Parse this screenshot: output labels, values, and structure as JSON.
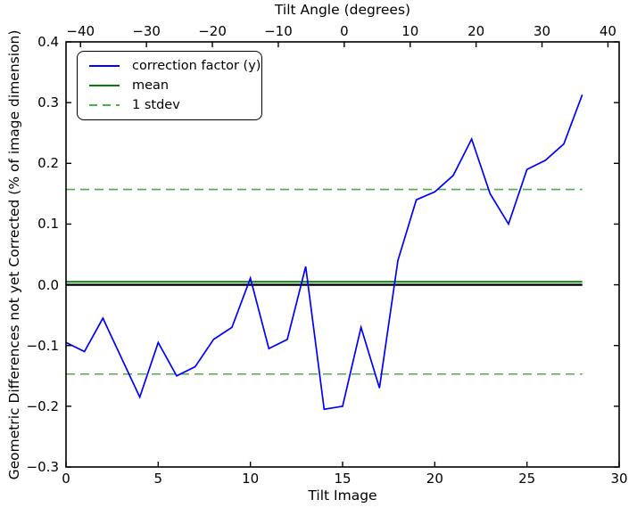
{
  "figure": {
    "top_axis_title": "Tilt Angle (degrees)",
    "bottom_axis_title": "Tilt Image",
    "left_axis_title": "Geometric Differences not yet Corrected (% of image dimension)"
  },
  "legend": {
    "items": [
      {
        "label": "correction factor (y)",
        "color": "#0000ff",
        "style": "solid"
      },
      {
        "label": "mean",
        "color": "#008000",
        "style": "solid"
      },
      {
        "label": "1 stdev",
        "color": "#4dae4d",
        "style": "dashed"
      }
    ]
  },
  "chart_data": {
    "type": "line",
    "title": "Tilt Angle (degrees)",
    "xlabel": "Tilt Image",
    "ylabel": "Geometric Differences not yet Corrected (% of image dimension)",
    "x": [
      0,
      1,
      2,
      3,
      4,
      5,
      6,
      7,
      8,
      9,
      10,
      11,
      12,
      13,
      14,
      15,
      16,
      17,
      18,
      19,
      20,
      21,
      22,
      23,
      24,
      25,
      26,
      27,
      28
    ],
    "series": [
      {
        "name": "correction factor (y)",
        "color": "#0000ff",
        "values": [
          -0.095,
          -0.11,
          -0.055,
          -0.12,
          -0.185,
          -0.095,
          -0.15,
          -0.135,
          -0.09,
          -0.07,
          0.011,
          -0.105,
          -0.09,
          0.03,
          -0.205,
          -0.2,
          -0.07,
          -0.17,
          0.04,
          0.14,
          0.153,
          0.18,
          0.24,
          0.15,
          0.1,
          0.19,
          0.205,
          0.232,
          0.313
        ]
      }
    ],
    "reference_lines": [
      {
        "name": "mean",
        "y": 0.005,
        "color": "#008000",
        "style": "solid",
        "width": 1.8
      },
      {
        "name": "1 stdev upper",
        "y": 0.157,
        "color": "#4dae4d",
        "style": "dashed",
        "width": 1.6
      },
      {
        "name": "1 stdev lower",
        "y": -0.147,
        "color": "#4dae4d",
        "style": "dashed",
        "width": 1.6
      },
      {
        "name": "zero",
        "y": 0.0,
        "color": "#000000",
        "style": "solid",
        "width": 2.3
      }
    ],
    "axes": {
      "bottom": {
        "range": [
          0,
          30
        ],
        "ticks": [
          0,
          5,
          10,
          15,
          20,
          25,
          30
        ],
        "tick_labels": [
          "0",
          "5",
          "10",
          "15",
          "20",
          "25",
          "30"
        ]
      },
      "top": {
        "range": [
          -42.2,
          41.7
        ],
        "ticks": [
          -40,
          -30,
          -20,
          -10,
          0,
          10,
          20,
          30,
          40
        ],
        "tick_labels": [
          "−40",
          "−30",
          "−20",
          "−10",
          "0",
          "10",
          "20",
          "30",
          "40"
        ]
      },
      "left": {
        "range": [
          -0.3,
          0.4
        ],
        "ticks": [
          0.4,
          0.3,
          0.2,
          0.1,
          0.0,
          -0.1,
          -0.2,
          -0.3
        ],
        "tick_labels": [
          "0.4",
          "0.3",
          "0.2",
          "0.1",
          "0.0",
          "−0.1",
          "−0.2",
          "−0.3"
        ]
      }
    },
    "grid": false,
    "legend_position": "upper-left"
  }
}
